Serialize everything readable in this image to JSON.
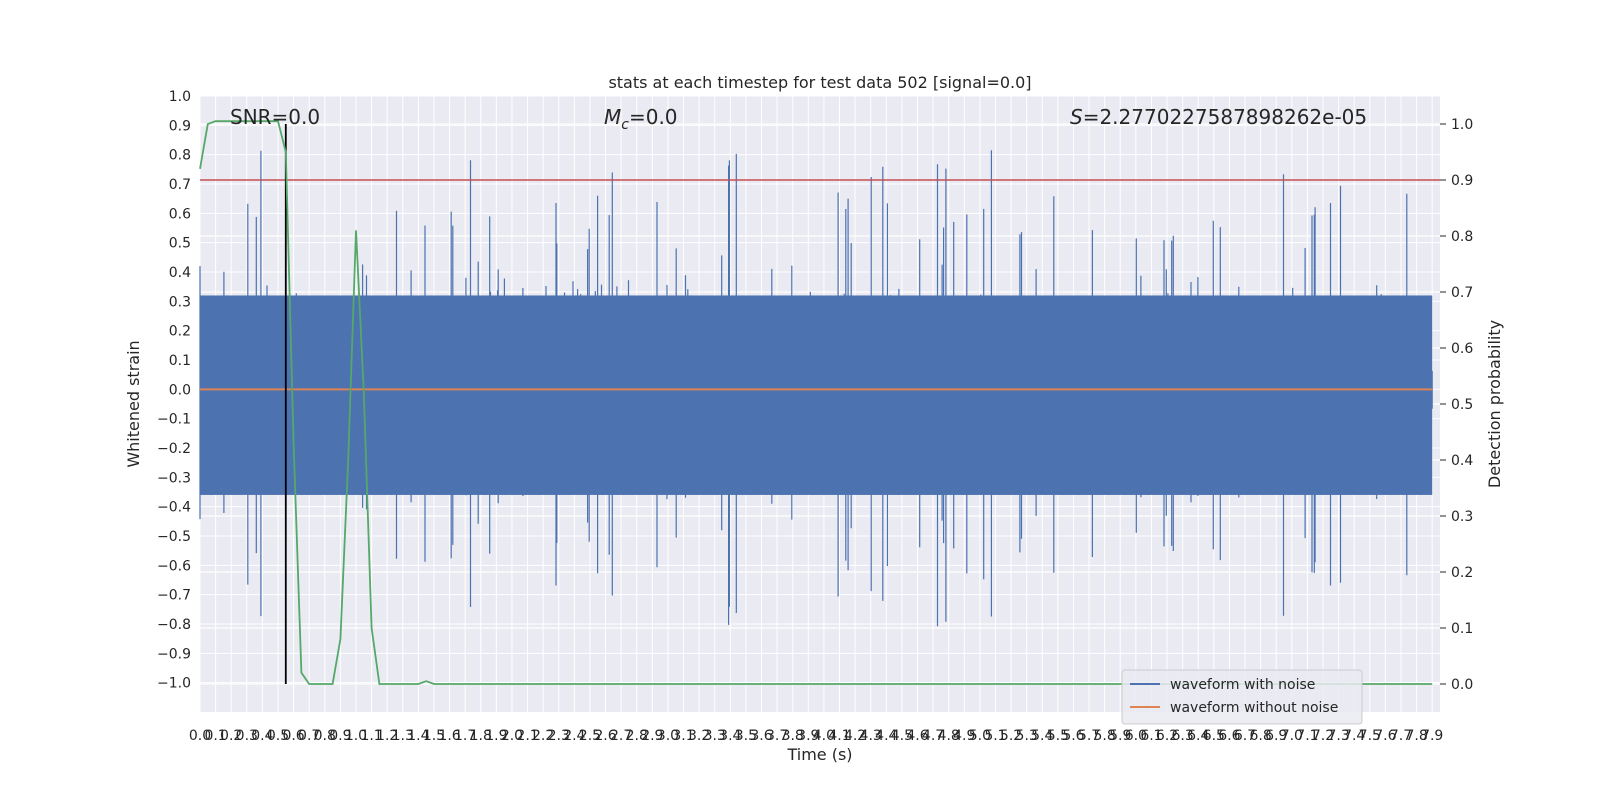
{
  "chart_data": {
    "type": "line",
    "title": "stats at each timestep for test data 502 [signal=0.0]",
    "xlabel": "Time (s)",
    "ylabel": "Whitened strain",
    "ylabel_right": "Detection probability",
    "xlim": [
      0.0,
      7.95
    ],
    "ylim": [
      -1.1,
      1.0
    ],
    "ylim_right": [
      -0.05,
      1.05
    ],
    "x_ticks": [
      0.0,
      0.1,
      0.2,
      0.3,
      0.4,
      0.5,
      0.6,
      0.7,
      0.8,
      0.9,
      1.0,
      1.1,
      1.2,
      1.3,
      1.4,
      1.5,
      1.6,
      1.7,
      1.8,
      1.9,
      2.0,
      2.1,
      2.2,
      2.3,
      2.4,
      2.5,
      2.6,
      2.7,
      2.8,
      2.9,
      3.0,
      3.1,
      3.2,
      3.3,
      3.4,
      3.5,
      3.6,
      3.7,
      3.8,
      3.9,
      4.0,
      4.1,
      4.2,
      4.3,
      4.4,
      4.5,
      4.6,
      4.7,
      4.8,
      4.9,
      5.0,
      5.1,
      5.2,
      5.3,
      5.4,
      5.5,
      5.6,
      5.7,
      5.8,
      5.9,
      6.0,
      6.1,
      6.2,
      6.3,
      6.4,
      6.5,
      6.6,
      6.7,
      6.8,
      6.9,
      7.0,
      7.1,
      7.2,
      7.3,
      7.4,
      7.5,
      7.6,
      7.7,
      7.8,
      7.9
    ],
    "y_ticks": [
      1.0,
      0.9,
      0.8,
      0.7,
      0.6,
      0.5,
      0.4,
      0.3,
      0.2,
      0.1,
      0.0,
      -0.1,
      -0.2,
      -0.3,
      -0.4,
      -0.5,
      -0.6,
      -0.7,
      -0.8,
      -0.9,
      -1.0
    ],
    "y_ticks_right": [
      1.0,
      0.9,
      0.8,
      0.7,
      0.6,
      0.5,
      0.4,
      0.3,
      0.2,
      0.1,
      0.0
    ],
    "grid": true,
    "annotations": {
      "snr": "SNR=0.0",
      "mc": "=0.0",
      "mc_symbol": "M",
      "mc_subscript": "c",
      "s": "=2.2770227587898262e-05",
      "s_symbol": "S"
    },
    "threshold_right": 0.9,
    "vertical_marker_x": 0.55,
    "legend_position": "lower-right",
    "series": [
      {
        "name": "waveform with noise",
        "color": "#4c72b0",
        "envelope": "noise band, typical ±0.45, peaks to +0.91 and −0.98"
      },
      {
        "name": "waveform without noise",
        "color": "#dd8452",
        "values_constant": 0.0
      },
      {
        "name": "",
        "color": "#55a868",
        "axis": "right",
        "x": [
          0.0,
          0.05,
          0.1,
          0.15,
          0.2,
          0.25,
          0.3,
          0.35,
          0.4,
          0.45,
          0.5,
          0.55,
          0.6,
          0.65,
          0.7,
          0.75,
          0.8,
          0.85,
          0.9,
          0.95,
          1.0,
          1.05,
          1.1,
          1.15,
          1.2,
          1.25,
          1.3,
          1.35,
          1.4,
          1.45,
          1.5,
          1.6,
          2.0,
          3.0,
          4.0,
          5.0,
          6.0,
          7.0,
          7.9
        ],
        "values": [
          0.92,
          1.0,
          1.005,
          1.005,
          1.005,
          1.005,
          1.005,
          1.005,
          1.005,
          1.005,
          1.005,
          0.95,
          0.43,
          0.02,
          0.0,
          0.0,
          0.0,
          0.0,
          0.08,
          0.4,
          0.81,
          0.52,
          0.1,
          0.0,
          0.0,
          0.0,
          0.0,
          0.0,
          0.0,
          0.005,
          0.0,
          0.0,
          0.0,
          0.0,
          0.0,
          0.0,
          0.0,
          0.0,
          0.0
        ]
      }
    ],
    "colors": {
      "background": "#eaeaf2",
      "grid": "#ffffff",
      "threshold": "#c44e52",
      "marker": "#000000"
    }
  }
}
